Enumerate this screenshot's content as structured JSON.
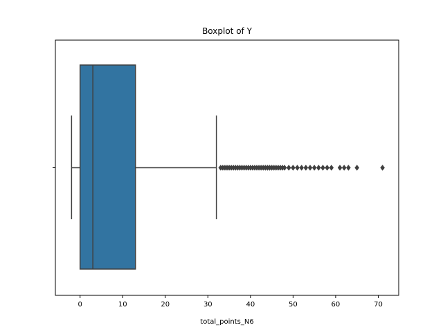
{
  "chart_data": {
    "type": "boxplot",
    "title": "Boxplot of Y",
    "xlabel": "total_points_N6",
    "ylabel": "",
    "orientation": "horizontal",
    "xlim": [
      -5.8,
      74.8
    ],
    "x_ticks": [
      0,
      10,
      20,
      30,
      40,
      50,
      60,
      70
    ],
    "grid": false,
    "box": {
      "whisker_low": -2,
      "q1": 0,
      "median": 3,
      "q3": 13,
      "whisker_high": 32,
      "color": "#3274a1",
      "line_color": "#3f3f3f"
    },
    "outliers": [
      33,
      33.5,
      34,
      34.5,
      35,
      35.5,
      36,
      36.5,
      37,
      37.5,
      38,
      38.5,
      39,
      39.5,
      40,
      40.5,
      41,
      41.5,
      42,
      42.5,
      43,
      43.5,
      44,
      44.5,
      45,
      45.5,
      46,
      46.5,
      47,
      47.5,
      48,
      49,
      50,
      51,
      52,
      53,
      54,
      55,
      56,
      57,
      58,
      59,
      61,
      62,
      63,
      65,
      71
    ]
  }
}
